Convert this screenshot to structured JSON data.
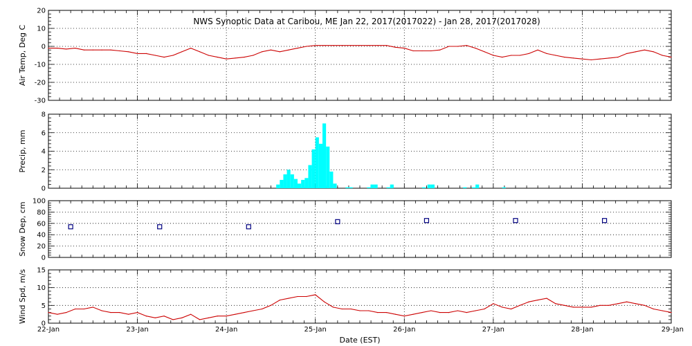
{
  "title": "NWS Synoptic Data at Caribou, ME   Jan 22, 2017(2017022) - Jan 28, 2017(2017028)",
  "xlabel": "Date (EST)",
  "x_ticks": [
    "22-Jan",
    "23-Jan",
    "24-Jan",
    "25-Jan",
    "26-Jan",
    "27-Jan",
    "28-Jan",
    "29-Jan"
  ],
  "colors": {
    "air_temp": "#cc0000",
    "precip": "#00ffff",
    "snow_depth": "#000080",
    "wind": "#cc0000",
    "grid": "#000000"
  },
  "chart_data": [
    {
      "type": "line",
      "ylabel": "Air Temp, Deg C",
      "ylim": [
        -30,
        20
      ],
      "yticks": [
        -30,
        -20,
        -10,
        0,
        10,
        20
      ],
      "xlim": [
        0,
        7
      ],
      "grid": true,
      "series": [
        {
          "x": [
            0,
            0.1,
            0.2,
            0.3,
            0.4,
            0.5,
            0.6,
            0.7,
            0.8,
            0.9,
            1.0,
            1.1,
            1.2,
            1.3,
            1.4,
            1.5,
            1.6,
            1.7,
            1.8,
            1.9,
            2.0,
            2.1,
            2.2,
            2.3,
            2.4,
            2.5,
            2.6,
            2.7,
            2.8,
            2.9,
            3.0,
            3.1,
            3.2,
            3.3,
            3.4,
            3.5,
            3.6,
            3.7,
            3.8,
            3.9,
            4.0,
            4.1,
            4.2,
            4.3,
            4.4,
            4.5,
            4.6,
            4.7,
            4.8,
            4.9,
            5.0,
            5.1,
            5.2,
            5.3,
            5.4,
            5.5,
            5.6,
            5.7,
            5.8,
            5.9,
            6.0,
            6.1,
            6.2,
            6.3,
            6.4,
            6.5,
            6.6,
            6.7,
            6.8,
            6.9,
            7.0
          ],
          "values": [
            -1,
            -1,
            -1.5,
            -1,
            -2,
            -2,
            -2,
            -2,
            -2.5,
            -3,
            -4,
            -4,
            -5,
            -6,
            -5,
            -3,
            -1,
            -3,
            -5,
            -6,
            -7,
            -6.5,
            -6,
            -5,
            -3,
            -2,
            -3,
            -2,
            -1,
            0,
            0.5,
            0.5,
            0.5,
            0.5,
            0.5,
            0.5,
            0.5,
            0.5,
            0.5,
            -0.5,
            -1,
            -2.5,
            -2.5,
            -2.5,
            -2,
            0,
            0,
            0.5,
            -1,
            -3,
            -5,
            -6,
            -5,
            -5,
            -4,
            -2,
            -4,
            -5,
            -6,
            -6.5,
            -7,
            -7.5,
            -7,
            -6.5,
            -6,
            -4,
            -3,
            -2,
            -3,
            -5,
            -6
          ]
        }
      ]
    },
    {
      "type": "bar",
      "ylabel": "Precip, mm",
      "ylim": [
        0,
        8
      ],
      "yticks": [
        0,
        2,
        4,
        6,
        8
      ],
      "xlim": [
        0,
        7
      ],
      "grid": true,
      "bin_width": 0.04,
      "series": [
        {
          "x": [
            2.56,
            2.6,
            2.64,
            2.68,
            2.72,
            2.76,
            2.8,
            2.84,
            2.88,
            2.92,
            2.96,
            3.0,
            3.04,
            3.08,
            3.12,
            3.16,
            3.2,
            3.34,
            3.38,
            3.58,
            3.62,
            3.66,
            3.8,
            3.84,
            4.2,
            4.26,
            4.3,
            4.66,
            4.76,
            4.8,
            5.1
          ],
          "values": [
            0.4,
            0.9,
            1.5,
            2.0,
            1.5,
            1.0,
            0.5,
            0.9,
            1.1,
            2.5,
            4.2,
            5.5,
            4.8,
            7.0,
            4.5,
            1.8,
            0.5,
            0.1,
            0.1,
            0.1,
            0.4,
            0.4,
            0.1,
            0.4,
            0.1,
            0.4,
            0.4,
            0.1,
            0.1,
            0.4,
            0.1
          ]
        }
      ]
    },
    {
      "type": "scatter",
      "ylabel": "Snow Dep, cm",
      "ylim": [
        0,
        100
      ],
      "yticks": [
        0,
        20,
        40,
        60,
        80,
        100
      ],
      "xlim": [
        0,
        7
      ],
      "grid": true,
      "series": [
        {
          "x": [
            0.25,
            1.25,
            2.25,
            3.25,
            4.25,
            5.25,
            6.25
          ],
          "values": [
            54,
            54,
            54,
            63,
            65,
            65,
            65
          ]
        }
      ]
    },
    {
      "type": "line",
      "ylabel": "Wind Spd, m/s",
      "ylim": [
        0,
        15
      ],
      "yticks": [
        0,
        5,
        10,
        15
      ],
      "xlim": [
        0,
        7
      ],
      "grid": true,
      "series": [
        {
          "x": [
            0,
            0.1,
            0.2,
            0.3,
            0.4,
            0.5,
            0.6,
            0.7,
            0.8,
            0.9,
            1.0,
            1.1,
            1.2,
            1.3,
            1.4,
            1.5,
            1.6,
            1.7,
            1.8,
            1.9,
            2.0,
            2.1,
            2.2,
            2.3,
            2.4,
            2.5,
            2.6,
            2.7,
            2.8,
            2.9,
            3.0,
            3.1,
            3.2,
            3.3,
            3.4,
            3.5,
            3.6,
            3.7,
            3.8,
            3.9,
            4.0,
            4.1,
            4.2,
            4.3,
            4.4,
            4.5,
            4.6,
            4.7,
            4.8,
            4.9,
            5.0,
            5.1,
            5.2,
            5.3,
            5.4,
            5.5,
            5.6,
            5.7,
            5.8,
            5.9,
            6.0,
            6.1,
            6.2,
            6.3,
            6.4,
            6.5,
            6.6,
            6.7,
            6.8,
            6.9,
            7.0
          ],
          "values": [
            3,
            2.5,
            3,
            4,
            4,
            4.5,
            3.5,
            3,
            3,
            2.5,
            3,
            2,
            1.5,
            2,
            1,
            1.5,
            2.5,
            1,
            1.5,
            2,
            2,
            2.5,
            3,
            3.5,
            4,
            5,
            6.5,
            7,
            7.5,
            7.5,
            8,
            6,
            4.5,
            4,
            4,
            3.5,
            3.5,
            3,
            3,
            2.5,
            2,
            2.5,
            3,
            3.5,
            3,
            3,
            3.5,
            3,
            3.5,
            4,
            5.5,
            4.5,
            4,
            5,
            6,
            6.5,
            7,
            5.5,
            5,
            4.5,
            4.5,
            4.5,
            5,
            5,
            5.5,
            6,
            5.5,
            5,
            4,
            3.5,
            3
          ]
        }
      ]
    }
  ]
}
